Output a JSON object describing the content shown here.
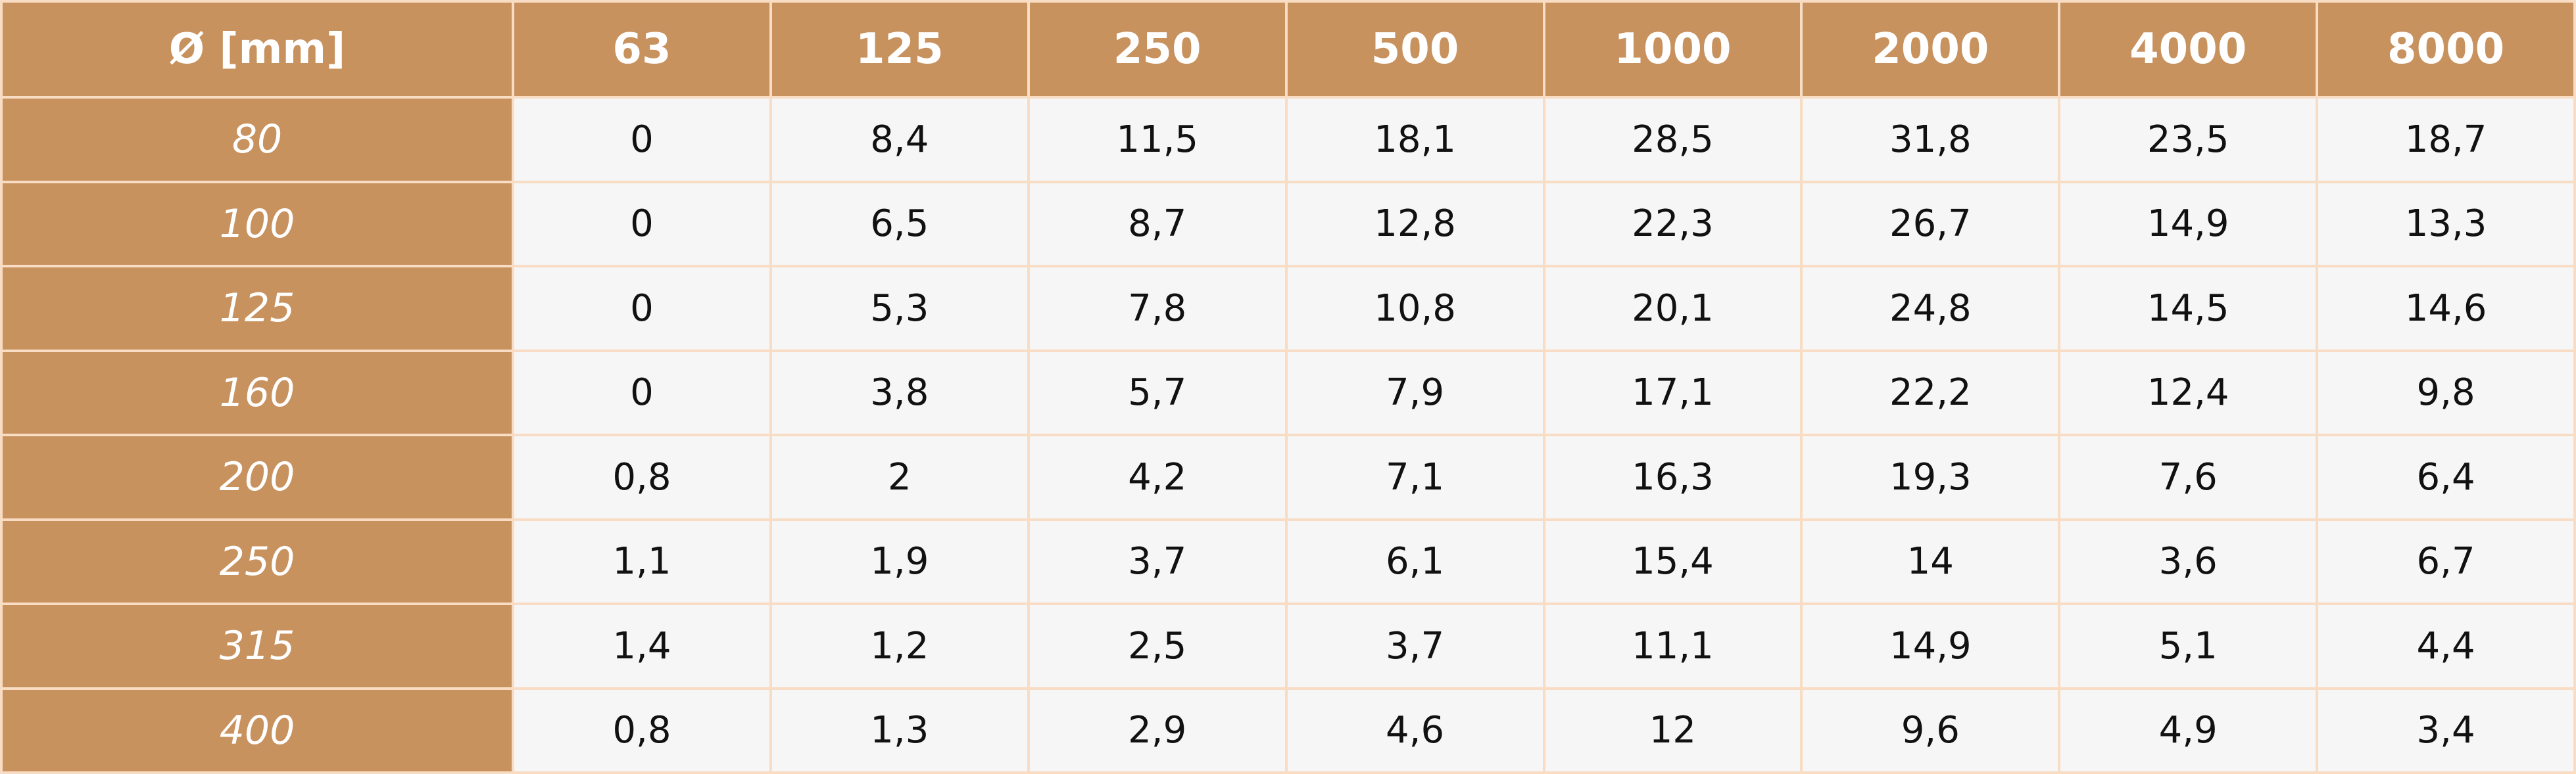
{
  "table": {
    "header": [
      "Ø [mm]",
      "63",
      "125",
      "250",
      "500",
      "1000",
      "2000",
      "4000",
      "8000"
    ],
    "rows": [
      [
        "80",
        "0",
        "8,4",
        "11,5",
        "18,1",
        "28,5",
        "31,8",
        "23,5",
        "18,7"
      ],
      [
        "100",
        "0",
        "6,5",
        "8,7",
        "12,8",
        "22,3",
        "26,7",
        "14,9",
        "13,3"
      ],
      [
        "125",
        "0",
        "5,3",
        "7,8",
        "10,8",
        "20,1",
        "24,8",
        "14,5",
        "14,6"
      ],
      [
        "160",
        "0",
        "3,8",
        "5,7",
        "7,9",
        "17,1",
        "22,2",
        "12,4",
        "9,8"
      ],
      [
        "200",
        "0,8",
        "2",
        "4,2",
        "7,1",
        "16,3",
        "19,3",
        "7,6",
        "6,4"
      ],
      [
        "250",
        "1,1",
        "1,9",
        "3,7",
        "6,1",
        "15,4",
        "14",
        "3,6",
        "6,7"
      ],
      [
        "315",
        "1,4",
        "1,2",
        "2,5",
        "3,7",
        "11,1",
        "14,9",
        "5,1",
        "4,4"
      ],
      [
        "400",
        "0,8",
        "1,3",
        "2,9",
        "4,6",
        "12",
        "9,6",
        "4,9",
        "3,4"
      ]
    ]
  }
}
